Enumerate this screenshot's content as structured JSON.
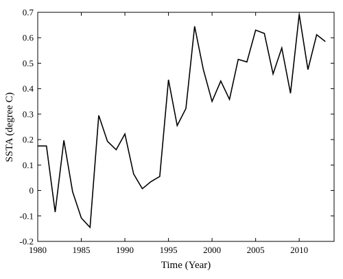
{
  "chart_data": {
    "type": "line",
    "xlabel": "Time (Year)",
    "ylabel": "SSTA (degree C)",
    "xlim": [
      1980,
      2014
    ],
    "ylim": [
      -0.2,
      0.7
    ],
    "xticks": [
      1980,
      1985,
      1990,
      1995,
      2000,
      2005,
      2010
    ],
    "xtick_labels": [
      "1980",
      "1985",
      "1990",
      "1995",
      "2000",
      "2005",
      "2010"
    ],
    "yticks": [
      -0.2,
      -0.1,
      0,
      0.1,
      0.2,
      0.3,
      0.4,
      0.5,
      0.6,
      0.7
    ],
    "ytick_labels": [
      "-0.2",
      "-0.1",
      "0",
      "0.1",
      "0.2",
      "0.3",
      "0.4",
      "0.5",
      "0.6",
      "0.7"
    ],
    "grid": false,
    "line_color": "#000000",
    "series": [
      {
        "x": [
          1980,
          1981,
          1982,
          1983,
          1984,
          1985,
          1986,
          1987,
          1988,
          1989,
          1990,
          1991,
          1992,
          1993,
          1994,
          1995,
          1996,
          1997,
          1998,
          1999,
          2000,
          2001,
          2002,
          2003,
          2004,
          2005,
          2006,
          2007,
          2008,
          2009,
          2010,
          2011,
          2012,
          2013
        ],
        "values": [
          0.175,
          0.175,
          -0.085,
          0.197,
          -0.005,
          -0.108,
          -0.145,
          0.295,
          0.193,
          0.16,
          0.222,
          0.065,
          0.007,
          0.035,
          0.055,
          0.435,
          0.255,
          0.322,
          0.645,
          0.475,
          0.35,
          0.43,
          0.358,
          0.515,
          0.505,
          0.63,
          0.617,
          0.458,
          0.56,
          0.382,
          0.692,
          0.475,
          0.612,
          0.585
        ]
      }
    ]
  }
}
